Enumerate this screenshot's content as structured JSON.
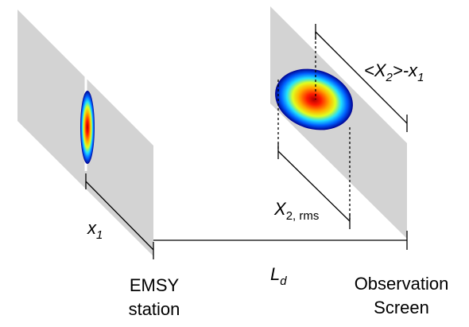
{
  "labels": {
    "x1": {
      "main": "x",
      "sub": "1"
    },
    "ld": {
      "main": "L",
      "sub": "d"
    },
    "emsy": [
      "EMSY",
      "station"
    ],
    "screen": [
      "Observation",
      "Screen"
    ],
    "mean": {
      "prefix": "<X",
      "sub": "2",
      "suffix": ">-x",
      "sub2": "1"
    },
    "rms": {
      "main": "X",
      "sub": "2, rms"
    }
  }
}
